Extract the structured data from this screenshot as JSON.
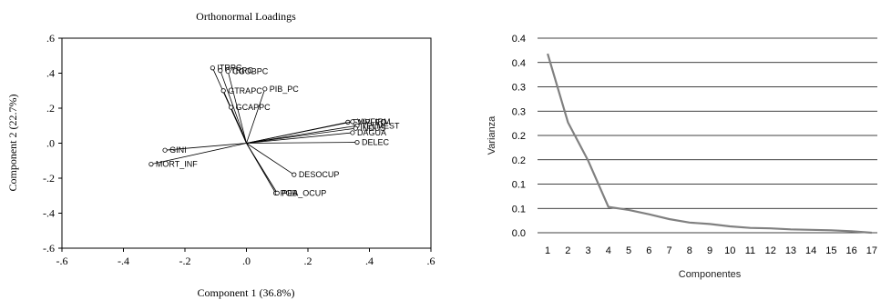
{
  "chart_data": [
    {
      "type": "scatter",
      "title": "Orthonormal Loadings",
      "xlabel": "Component 1 (36.8%)",
      "ylabel": "Component 2 (22.7%)",
      "xlim": [
        -0.6,
        0.6
      ],
      "ylim": [
        -0.6,
        0.6
      ],
      "xticks": [
        -0.6,
        -0.4,
        -0.2,
        0.0,
        0.2,
        0.4,
        0.6
      ],
      "xtick_labels": [
        "-.6",
        "-.4",
        "-.2",
        ".0",
        ".2",
        ".4",
        ".6"
      ],
      "yticks": [
        -0.6,
        -0.4,
        -0.2,
        0.0,
        0.2,
        0.4,
        0.6
      ],
      "ytick_labels": [
        "-.6",
        "-.4",
        "-.2",
        ".0",
        ".2",
        ".4",
        ".6"
      ],
      "grid": false,
      "points": [
        {
          "label": "ITRPC",
          "x": -0.11,
          "y": 0.43
        },
        {
          "label": "CTRPC",
          "x": -0.085,
          "y": 0.415
        },
        {
          "label": "CGOBPC",
          "x": -0.06,
          "y": 0.41
        },
        {
          "label": "GTRAPC",
          "x": -0.075,
          "y": 0.3
        },
        {
          "label": "PIB_PC",
          "x": 0.06,
          "y": 0.31
        },
        {
          "label": "GCAPPC",
          "x": -0.05,
          "y": 0.205
        },
        {
          "label": "EMPLEO",
          "x": 0.33,
          "y": 0.12
        },
        {
          "label": "VIVFIRM",
          "x": 0.345,
          "y": 0.123
        },
        {
          "label": "TELMEST",
          "x": 0.36,
          "y": 0.1
        },
        {
          "label": "INDUS",
          "x": 0.355,
          "y": 0.085
        },
        {
          "label": "DAGUA",
          "x": 0.345,
          "y": 0.06
        },
        {
          "label": "DELEC",
          "x": 0.36,
          "y": 0.005
        },
        {
          "label": "GINI",
          "x": -0.265,
          "y": -0.04
        },
        {
          "label": "MORT_INF",
          "x": -0.31,
          "y": -0.12
        },
        {
          "label": "DESOCUP",
          "x": 0.155,
          "y": -0.18
        },
        {
          "label": "POB",
          "x": 0.095,
          "y": -0.285
        },
        {
          "label": "PEA_OCUP",
          "x": 0.1,
          "y": -0.285
        }
      ]
    },
    {
      "type": "line",
      "xlabel": "Componentes",
      "ylabel": "Varianza",
      "ylim": [
        0.0,
        0.4
      ],
      "yticks": [
        0.0,
        0.05,
        0.1,
        0.15,
        0.2,
        0.25,
        0.3,
        0.35,
        0.4
      ],
      "ytick_labels": [
        "0.0",
        "0.1",
        "0.1",
        "0.2",
        "0.2",
        "0.3",
        "0.3",
        "0.4",
        "0.4"
      ],
      "grid": true,
      "color": "#808080",
      "categories": [
        "1",
        "2",
        "3",
        "4",
        "5",
        "6",
        "7",
        "8",
        "9",
        "10",
        "11",
        "12",
        "13",
        "14",
        "15",
        "16",
        "17"
      ],
      "values": [
        0.368,
        0.227,
        0.148,
        0.053,
        0.047,
        0.038,
        0.028,
        0.021,
        0.018,
        0.013,
        0.01,
        0.009,
        0.007,
        0.006,
        0.005,
        0.003,
        0.0
      ]
    }
  ]
}
